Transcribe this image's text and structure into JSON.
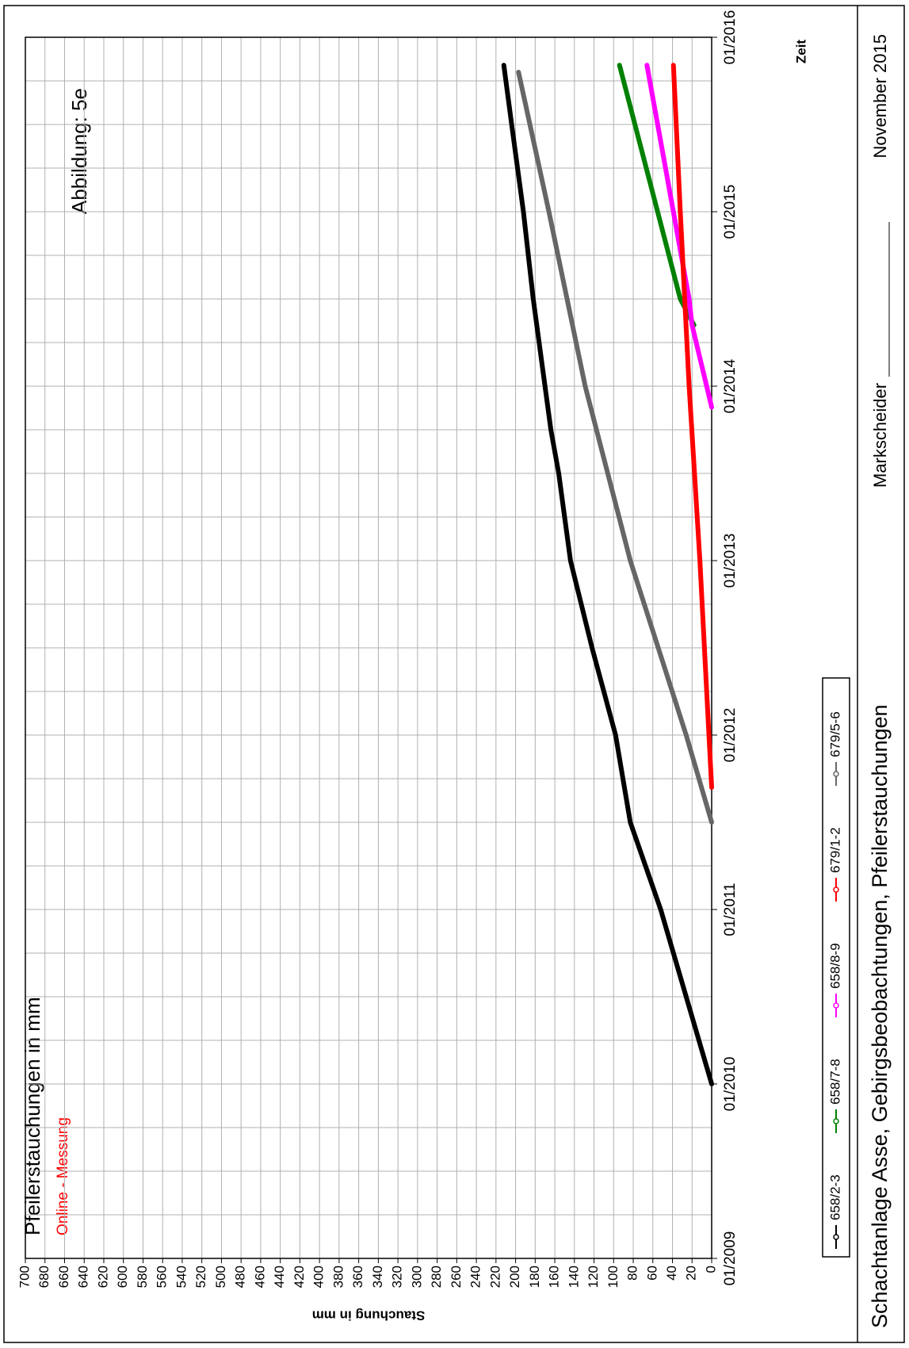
{
  "chart_data": {
    "type": "line",
    "title": "Pfeilerstauchungen in mm",
    "annotation": "Online - Messung",
    "figure_label": "Abbildung:  5e",
    "x_label": "Zeit",
    "y_label": "Stauchung in mm",
    "xlim": [
      2009,
      2016
    ],
    "xticks": [
      {
        "value": 2009,
        "label": "01/2009"
      },
      {
        "value": 2010,
        "label": "01/2010"
      },
      {
        "value": 2011,
        "label": "01/2011"
      },
      {
        "value": 2012,
        "label": "01/2012"
      },
      {
        "value": 2013,
        "label": "01/2013"
      },
      {
        "value": 2014,
        "label": "01/2014"
      },
      {
        "value": 2015,
        "label": "01/2015"
      },
      {
        "value": 2016,
        "label": "01/2016"
      }
    ],
    "ylim": [
      0,
      700
    ],
    "yticks": [
      0,
      20,
      40,
      60,
      80,
      100,
      120,
      140,
      160,
      180,
      200,
      220,
      240,
      260,
      280,
      300,
      320,
      340,
      360,
      380,
      400,
      420,
      440,
      460,
      480,
      500,
      520,
      540,
      560,
      580,
      600,
      620,
      640,
      660,
      680,
      700
    ],
    "grid": true,
    "series": [
      {
        "name": "658/2-3",
        "color": "#000000",
        "x": [
          2010.0,
          2011.0,
          2011.5,
          2012.0,
          2012.5,
          2013.0,
          2013.5,
          2013.75,
          2014.5,
          2015.0,
          2015.5,
          2015.84
        ],
        "values": [
          0,
          52,
          83,
          98,
          122,
          144,
          156,
          164,
          182,
          192,
          204,
          212
        ]
      },
      {
        "name": "658/7-8",
        "color": "#008000",
        "x": [
          2014.35,
          2014.5,
          2015.84
        ],
        "values": [
          18,
          32,
          94
        ]
      },
      {
        "name": "658/8-9",
        "color": "#ff00ff",
        "x": [
          2013.88,
          2014.35,
          2014.5,
          2015.84
        ],
        "values": [
          0,
          20,
          23,
          66
        ]
      },
      {
        "name": "679/1-2",
        "color": "#ff0000",
        "x": [
          2011.7,
          2013.0,
          2014.0,
          2015.0,
          2015.84
        ],
        "values": [
          0,
          12,
          23,
          32,
          39
        ]
      },
      {
        "name": "679/5-6",
        "color": "#666666",
        "x": [
          2011.5,
          2012.0,
          2013.0,
          2014.0,
          2015.0,
          2015.8
        ],
        "values": [
          0,
          26,
          83,
          129,
          166,
          197
        ]
      }
    ]
  },
  "footer": {
    "title": "Schachtanlage Asse, Gebirgsbeobachtungen, Pfeilerstauchungen",
    "signature_label": "Markscheider",
    "date": "November 2015"
  }
}
